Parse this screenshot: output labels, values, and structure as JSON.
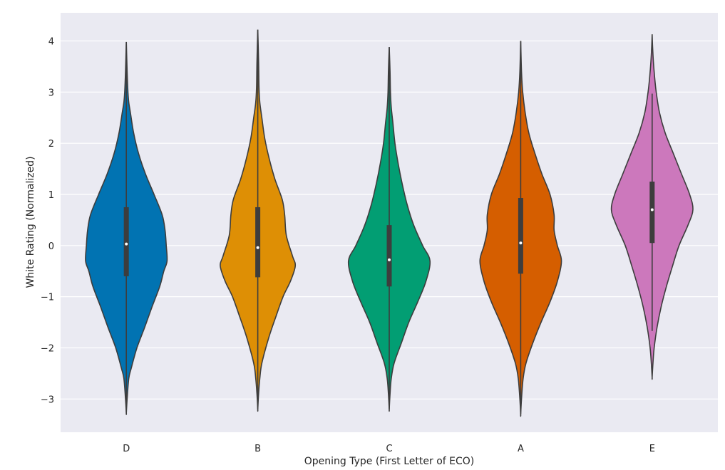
{
  "chart_data": {
    "type": "violin",
    "title": "",
    "xlabel": "Opening Type (First Letter of ECO)",
    "ylabel": "White Rating (Normalized)",
    "ylim": [
      -3.65,
      4.55
    ],
    "yticks": [
      -3,
      -2,
      -1,
      0,
      1,
      2,
      3,
      4
    ],
    "ytick_labels": [
      "−3",
      "−2",
      "−1",
      "0",
      "1",
      "2",
      "3",
      "4"
    ],
    "grid": true,
    "legend": "none",
    "categories": [
      "D",
      "B",
      "C",
      "A",
      "E"
    ],
    "colors": [
      "#0173b2",
      "#de8f05",
      "#029e73",
      "#d55e00",
      "#cc78bc"
    ],
    "violins": [
      {
        "category": "D",
        "min": -3.27,
        "max": 3.98,
        "whisker_low": -3.27,
        "whisker_high": 3.98,
        "q1": -0.6,
        "median": 0.03,
        "q3": 0.75,
        "density": [
          [
            -3.27,
            0.0
          ],
          [
            -3.0,
            0.02
          ],
          [
            -2.6,
            0.06
          ],
          [
            -2.4,
            0.12
          ],
          [
            -2.0,
            0.26
          ],
          [
            -1.6,
            0.45
          ],
          [
            -1.2,
            0.63
          ],
          [
            -0.8,
            0.82
          ],
          [
            -0.5,
            0.92
          ],
          [
            -0.3,
            1.0
          ],
          [
            0.0,
            0.98
          ],
          [
            0.3,
            0.95
          ],
          [
            0.6,
            0.88
          ],
          [
            1.0,
            0.68
          ],
          [
            1.4,
            0.47
          ],
          [
            1.8,
            0.3
          ],
          [
            2.2,
            0.18
          ],
          [
            2.6,
            0.1
          ],
          [
            2.8,
            0.06
          ],
          [
            3.0,
            0.04
          ],
          [
            3.4,
            0.02
          ],
          [
            3.98,
            0.0
          ]
        ]
      },
      {
        "category": "B",
        "min": -3.2,
        "max": 4.22,
        "whisker_low": -3.2,
        "whisker_high": 4.22,
        "q1": -0.62,
        "median": -0.04,
        "q3": 0.75,
        "density": [
          [
            -3.2,
            0.0
          ],
          [
            -2.9,
            0.02
          ],
          [
            -2.6,
            0.05
          ],
          [
            -2.3,
            0.1
          ],
          [
            -1.8,
            0.27
          ],
          [
            -1.4,
            0.44
          ],
          [
            -1.0,
            0.62
          ],
          [
            -0.7,
            0.8
          ],
          [
            -0.4,
            0.92
          ],
          [
            -0.2,
            0.85
          ],
          [
            0.2,
            0.7
          ],
          [
            0.6,
            0.66
          ],
          [
            0.9,
            0.6
          ],
          [
            1.3,
            0.42
          ],
          [
            1.7,
            0.28
          ],
          [
            2.1,
            0.17
          ],
          [
            2.5,
            0.1
          ],
          [
            2.8,
            0.05
          ],
          [
            3.1,
            0.03
          ],
          [
            3.6,
            0.02
          ],
          [
            4.22,
            0.0
          ]
        ]
      },
      {
        "category": "C",
        "min": -3.2,
        "max": 3.88,
        "whisker_low": -3.2,
        "whisker_high": 3.88,
        "q1": -0.8,
        "median": -0.28,
        "q3": 0.4,
        "density": [
          [
            -3.2,
            0.0
          ],
          [
            -2.9,
            0.02
          ],
          [
            -2.6,
            0.05
          ],
          [
            -2.3,
            0.12
          ],
          [
            -1.9,
            0.3
          ],
          [
            -1.5,
            0.48
          ],
          [
            -1.1,
            0.7
          ],
          [
            -0.7,
            0.9
          ],
          [
            -0.3,
            1.0
          ],
          [
            0.0,
            0.82
          ],
          [
            0.4,
            0.6
          ],
          [
            0.8,
            0.44
          ],
          [
            1.2,
            0.32
          ],
          [
            1.6,
            0.22
          ],
          [
            2.0,
            0.14
          ],
          [
            2.4,
            0.09
          ],
          [
            2.7,
            0.05
          ],
          [
            3.0,
            0.03
          ],
          [
            3.4,
            0.02
          ],
          [
            3.88,
            0.0
          ]
        ]
      },
      {
        "category": "A",
        "min": -3.3,
        "max": 4.0,
        "whisker_low": -3.3,
        "whisker_high": 4.0,
        "q1": -0.55,
        "median": 0.05,
        "q3": 0.93,
        "density": [
          [
            -3.3,
            0.0
          ],
          [
            -3.0,
            0.02
          ],
          [
            -2.6,
            0.06
          ],
          [
            -2.3,
            0.13
          ],
          [
            -1.9,
            0.3
          ],
          [
            -1.5,
            0.5
          ],
          [
            -1.1,
            0.72
          ],
          [
            -0.7,
            0.9
          ],
          [
            -0.3,
            1.0
          ],
          [
            0.0,
            0.9
          ],
          [
            0.3,
            0.82
          ],
          [
            0.6,
            0.82
          ],
          [
            1.0,
            0.72
          ],
          [
            1.4,
            0.52
          ],
          [
            1.8,
            0.35
          ],
          [
            2.2,
            0.2
          ],
          [
            2.6,
            0.11
          ],
          [
            3.0,
            0.05
          ],
          [
            3.4,
            0.02
          ],
          [
            4.0,
            0.0
          ]
        ]
      },
      {
        "category": "E",
        "min": -2.58,
        "max": 4.13,
        "whisker_low": -1.67,
        "whisker_high": 2.97,
        "q1": 0.05,
        "median": 0.7,
        "q3": 1.25,
        "density": [
          [
            -2.58,
            0.0
          ],
          [
            -2.3,
            0.02
          ],
          [
            -2.0,
            0.05
          ],
          [
            -1.6,
            0.12
          ],
          [
            -1.2,
            0.22
          ],
          [
            -0.8,
            0.35
          ],
          [
            -0.4,
            0.5
          ],
          [
            0.0,
            0.66
          ],
          [
            0.4,
            0.88
          ],
          [
            0.7,
            1.0
          ],
          [
            1.0,
            0.92
          ],
          [
            1.4,
            0.72
          ],
          [
            1.8,
            0.52
          ],
          [
            2.2,
            0.32
          ],
          [
            2.6,
            0.18
          ],
          [
            3.0,
            0.1
          ],
          [
            3.3,
            0.06
          ],
          [
            3.6,
            0.03
          ],
          [
            3.9,
            0.01
          ],
          [
            4.13,
            0.0
          ]
        ]
      }
    ]
  }
}
